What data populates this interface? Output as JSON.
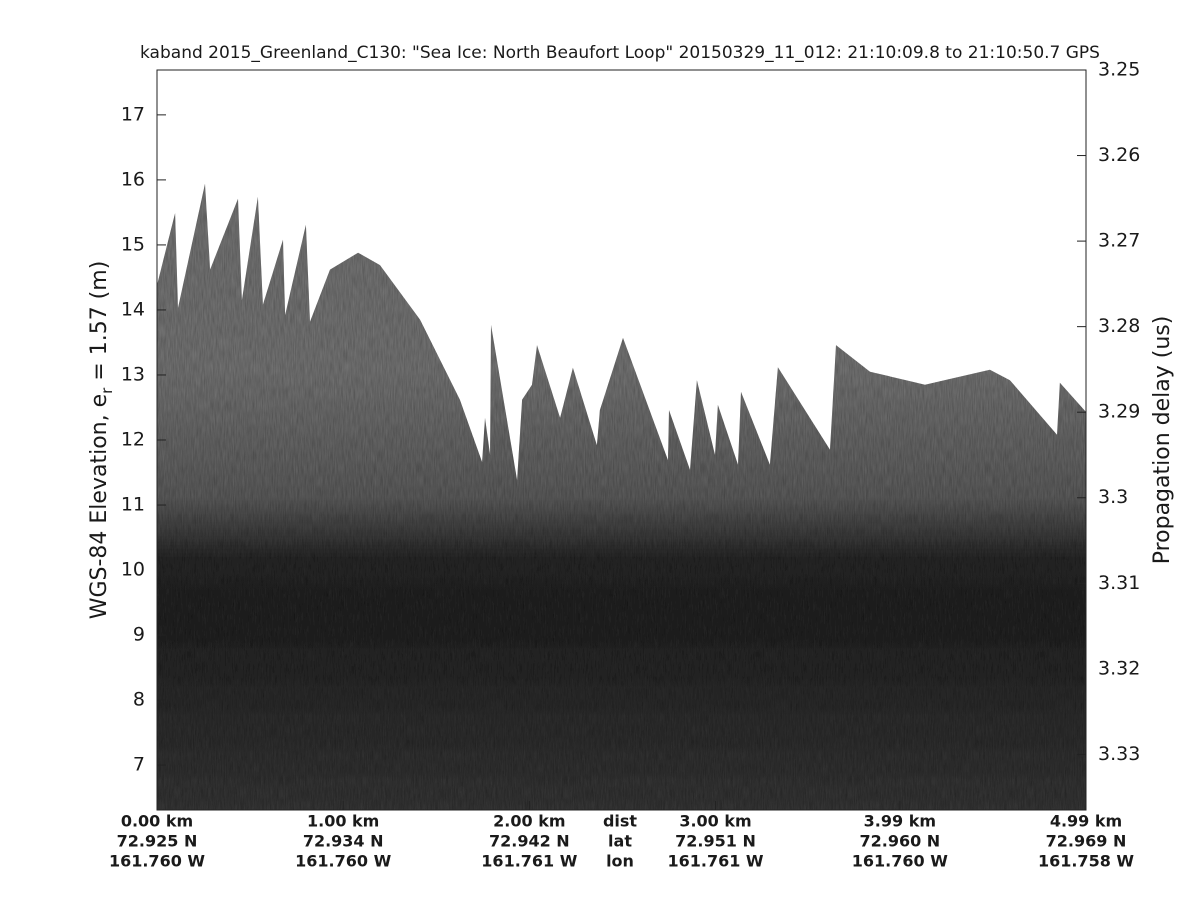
{
  "chart_data": {
    "type": "echogram",
    "title": "kaband 2015_Greenland_C130: \"Sea Ice: North Beaufort Loop\"  20150329_11_012: 21:10:09.8 to 21:10:50.7 GPS",
    "ylabel": [
      "WGS-84 Elevation, e",
      "r",
      " = 1.57 (m)"
    ],
    "y2label": "Propagation delay (us)",
    "xlim": [
      0,
      4.99
    ],
    "xticks": [
      {
        "value": 0,
        "label": "0.00 km"
      },
      {
        "value": 1.0,
        "label": "1.00 km"
      },
      {
        "value": 2.0,
        "label": "2.00 km"
      },
      {
        "value": 3.0,
        "label": "3.00 km"
      },
      {
        "value": 3.99,
        "label": "3.99 km"
      },
      {
        "value": 4.99,
        "label": "4.99 km"
      }
    ],
    "lat_labels": [
      "72.925 N",
      "72.934 N",
      "72.942 N",
      "72.951 N",
      "72.960 N",
      "72.969 N"
    ],
    "lon_labels": [
      "161.760 W",
      "161.760 W",
      "161.761 W",
      "161.761 W",
      "161.760 W",
      "161.758 W"
    ],
    "row_labels": [
      "dist",
      "lat",
      "lon"
    ],
    "ylim": [
      6.31,
      17.69
    ],
    "yticks": [
      7,
      8,
      9,
      10,
      11,
      12,
      13,
      14,
      15,
      16,
      17
    ],
    "y2lim": [
      3.3365,
      3.25
    ],
    "y2ticks": [
      3.25,
      3.26,
      3.27,
      3.28,
      3.29,
      3.3,
      3.31,
      3.32,
      3.33
    ],
    "x": [
      0,
      0.097,
      0.113,
      0.258,
      0.285,
      0.435,
      0.456,
      0.542,
      0.569,
      0.677,
      0.688,
      0.8,
      0.822,
      0.929,
      1.08,
      1.198,
      1.413,
      1.627,
      1.746,
      1.762,
      1.789,
      1.794,
      1.934,
      1.961,
      2.014,
      2.041,
      2.165,
      2.234,
      2.363,
      2.379,
      2.503,
      2.745,
      2.75,
      2.863,
      2.9,
      2.997,
      3.013,
      3.121,
      3.137,
      3.292,
      3.335,
      3.615,
      3.647,
      3.83,
      4.125,
      4.474,
      4.581,
      4.834,
      4.85,
      4.99
    ],
    "values": [
      14.38,
      15.49,
      14.03,
      15.94,
      14.62,
      15.71,
      14.15,
      15.74,
      14.08,
      15.08,
      13.92,
      15.31,
      13.82,
      14.62,
      14.88,
      14.69,
      13.85,
      12.62,
      11.66,
      12.34,
      11.77,
      13.77,
      11.38,
      12.62,
      12.85,
      13.46,
      12.34,
      13.11,
      11.92,
      12.46,
      13.57,
      11.69,
      12.46,
      11.54,
      12.92,
      11.77,
      12.54,
      11.62,
      12.74,
      11.62,
      13.12,
      11.85,
      13.46,
      13.05,
      12.85,
      13.08,
      12.92,
      12.08,
      12.88,
      12.43
    ]
  }
}
